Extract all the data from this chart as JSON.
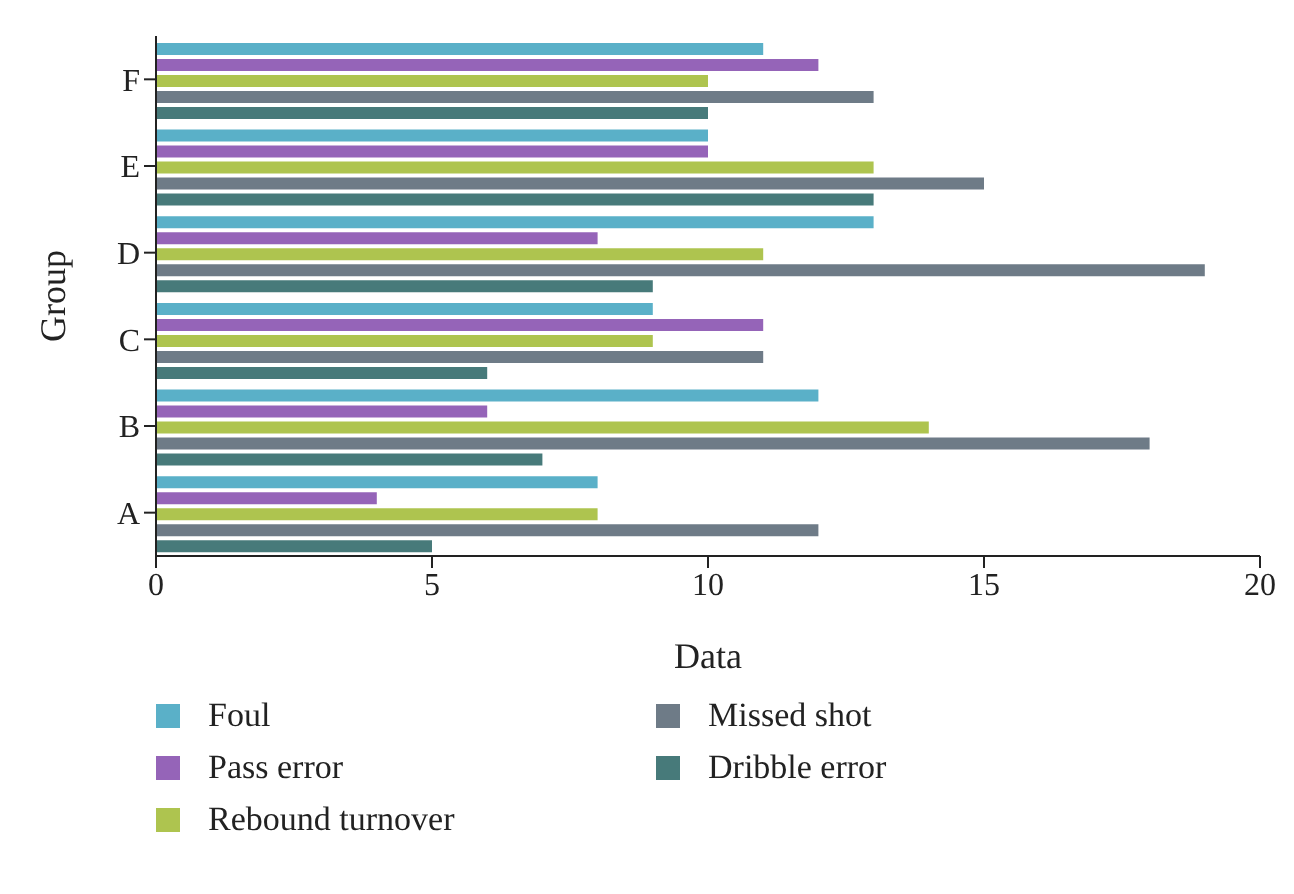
{
  "chart_data": {
    "type": "bar",
    "orientation": "horizontal",
    "xlabel": "Data",
    "ylabel": "Group",
    "categories": [
      "F",
      "E",
      "D",
      "C",
      "B",
      "A"
    ],
    "series": [
      {
        "name": "Foul",
        "color": "#5ab0c8",
        "values": [
          11,
          10,
          13,
          9,
          12,
          8
        ]
      },
      {
        "name": "Pass error",
        "color": "#9564b8",
        "values": [
          12,
          10,
          8,
          11,
          6,
          4
        ]
      },
      {
        "name": "Rebound turnover",
        "color": "#aec44f",
        "values": [
          10,
          13,
          11,
          9,
          14,
          8
        ]
      },
      {
        "name": "Missed shot",
        "color": "#6e7b87",
        "values": [
          13,
          15,
          19,
          11,
          18,
          12
        ]
      },
      {
        "name": "Dribble error",
        "color": "#477a7a",
        "values": [
          10,
          13,
          9,
          6,
          7,
          5
        ]
      }
    ],
    "xlim": [
      0,
      20
    ],
    "xticks": [
      0,
      5,
      10,
      15,
      20
    ],
    "legend": "bottom"
  }
}
